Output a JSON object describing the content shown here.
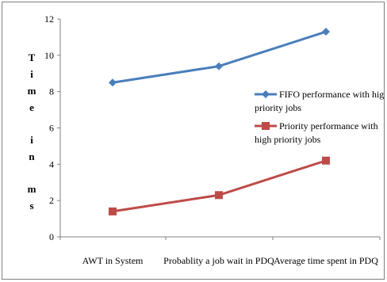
{
  "chart_data": {
    "type": "line",
    "categories": [
      "AWT in System",
      "Probablity a job wait in PDQ",
      "Average time spent in PDQ"
    ],
    "series": [
      {
        "name": "FIFO performance with high priority jobs",
        "values": [
          8.5,
          9.4,
          11.3
        ],
        "color": "#4a7ebb",
        "marker": "diamond"
      },
      {
        "name": "Priority performance with high priority jobs",
        "values": [
          1.4,
          2.3,
          4.2
        ],
        "color": "#be4b48",
        "marker": "square"
      }
    ],
    "ylabel": "Time in ms",
    "ylim": [
      0,
      12
    ],
    "yticks": [
      0,
      2,
      4,
      6,
      8,
      10,
      12
    ],
    "grid": false,
    "legend": "right",
    "legend_lines": [
      [
        "FIFO performance with high",
        "priority jobs"
      ],
      [
        "Priority performance with",
        "high priority jobs"
      ]
    ]
  }
}
